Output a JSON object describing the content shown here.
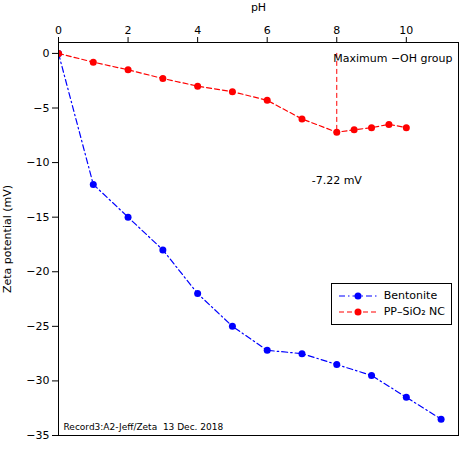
{
  "chart_data": {
    "type": "line",
    "x_label": "pH",
    "y_label": "Zeta potential (mV)",
    "xlim": [
      0,
      11.5
    ],
    "ylim": [
      -35,
      1
    ],
    "xticks": [
      0,
      2,
      4,
      6,
      8,
      10
    ],
    "yticks": [
      0,
      -5,
      -10,
      -15,
      -20,
      -25,
      -30,
      -35
    ],
    "grid": false,
    "legend": "lower right",
    "series": [
      {
        "name": "Bentonite",
        "color": "blue",
        "marker": "circle",
        "line_style": "dashdot",
        "x": [
          0,
          1,
          2,
          3,
          4,
          5,
          6,
          7,
          8,
          9,
          10,
          11
        ],
        "values": [
          0,
          -12,
          -15,
          -18,
          -22,
          -25,
          -27.2,
          -27.5,
          -28.5,
          -29.5,
          -31.5,
          -33.5
        ]
      },
      {
        "name": "PP–SiO₂ NC",
        "color": "red",
        "marker": "circle",
        "line_style": "dashed",
        "x": [
          0,
          1,
          2,
          3,
          4,
          5,
          6,
          7,
          8,
          8.5,
          9,
          9.5,
          10
        ],
        "values": [
          0,
          -0.8,
          -1.5,
          -2.3,
          -3.0,
          -3.5,
          -4.3,
          -6.0,
          -7.22,
          -7.0,
          -6.8,
          -6.5,
          -6.8
        ]
      }
    ],
    "vline": {
      "x": 8,
      "y1": 0,
      "y2": -7.22,
      "color": "red",
      "line_style": "dashed"
    },
    "annotations": [
      {
        "text": "-7.22 mV",
        "x": 8,
        "y": -7.22
      },
      {
        "text": "Maximum −OH group"
      },
      {
        "text": "Record3:A2-Jeff/Zeta  13 Dec. 2018"
      }
    ]
  }
}
